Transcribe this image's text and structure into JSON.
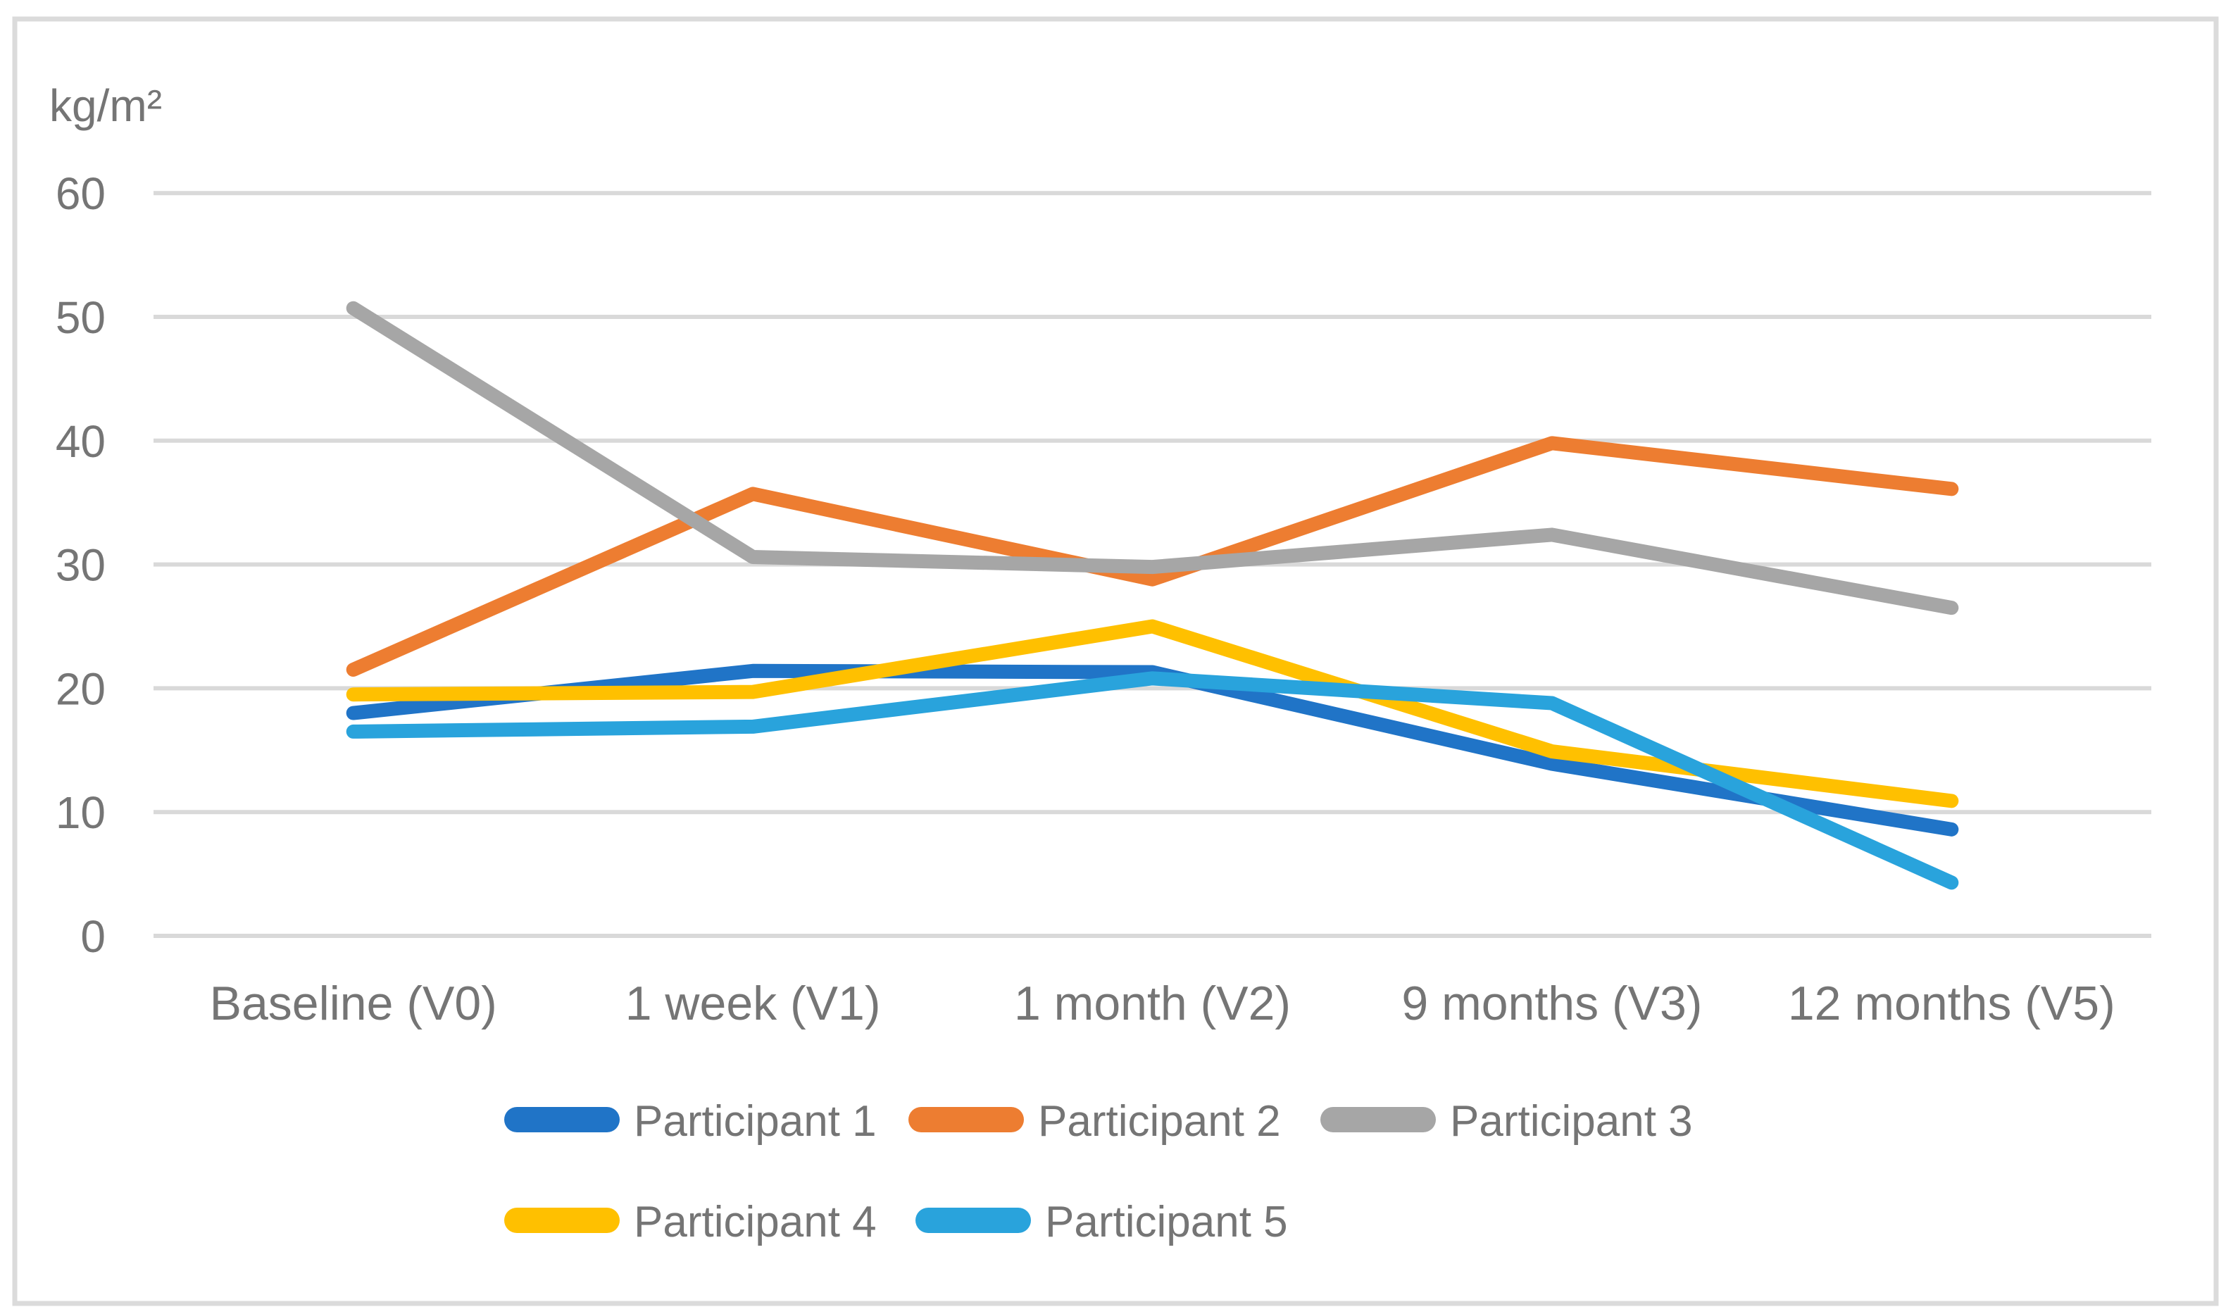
{
  "figure": {
    "background": "#FFFFFF",
    "border_color": "#DBDBDB",
    "gridline_color": "#D9D9D9",
    "text_color": "#757575",
    "unit_label": "kg/m²"
  },
  "chart_data": {
    "type": "line",
    "title": "",
    "xlabel": "",
    "ylabel": "kg/m²",
    "ylim": [
      0,
      60
    ],
    "yticks": [
      0,
      10,
      20,
      30,
      40,
      50,
      60
    ],
    "grid": true,
    "legend_position": "bottom",
    "categories": [
      "Baseline (V0)",
      "1 week (V1)",
      "1 month (V2)",
      "9 months (V3)",
      "12 months (V5)"
    ],
    "series": [
      {
        "name": "Participant 1",
        "color": "#2074C7",
        "values": [
          18.0,
          21.4,
          21.3,
          13.9,
          8.6
        ]
      },
      {
        "name": "Participant 2",
        "color": "#ED7D31",
        "values": [
          21.5,
          35.7,
          28.8,
          39.8,
          36.1
        ]
      },
      {
        "name": "Participant 3",
        "color": "#A6A6A6",
        "values": [
          50.7,
          30.6,
          29.8,
          32.4,
          26.5
        ]
      },
      {
        "name": "Participant 4",
        "color": "#FFC000",
        "values": [
          19.5,
          19.7,
          25.0,
          14.9,
          10.9
        ]
      },
      {
        "name": "Participant 5",
        "color": "#29A3DC",
        "values": [
          16.5,
          16.9,
          20.8,
          18.8,
          4.3
        ]
      }
    ]
  }
}
